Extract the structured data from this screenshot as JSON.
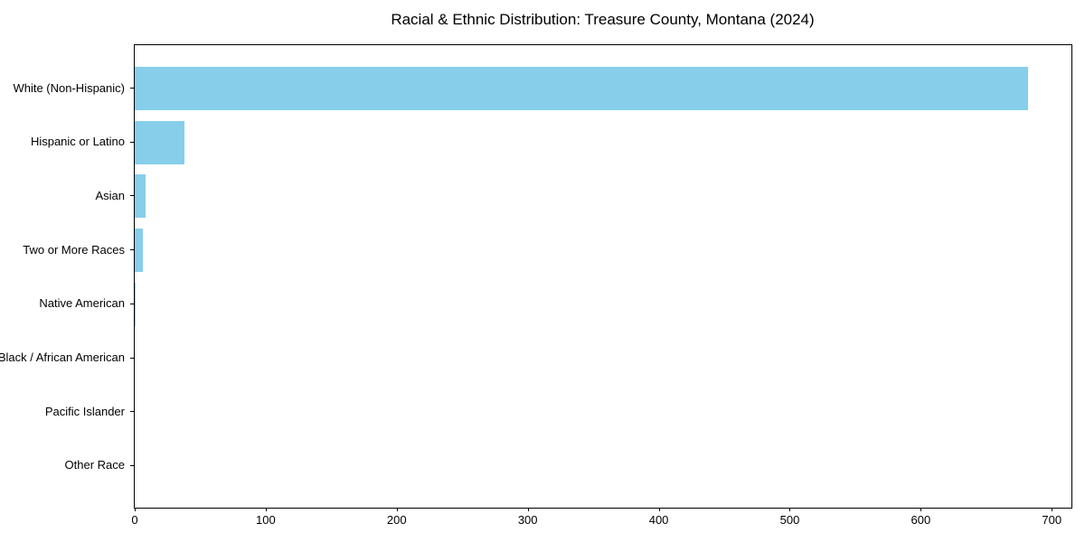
{
  "figure": {
    "background_color": "#ffffff",
    "text_color": "#000000",
    "spine_color": "#000000"
  },
  "chart_data": {
    "type": "bar",
    "orientation": "horizontal",
    "title": "Racial & Ethnic Distribution: Treasure County, Montana (2024)",
    "categories": [
      "White (Non-Hispanic)",
      "Hispanic or Latino",
      "Asian",
      "Two or More Races",
      "Native American",
      "Black / African American",
      "Pacific Islander",
      "Other Race"
    ],
    "values": [
      682,
      38,
      8,
      6,
      1,
      0,
      0,
      0
    ],
    "bar_color": "#87CEEB",
    "xlabel": "",
    "ylabel": "",
    "x_ticks": [
      0,
      100,
      200,
      300,
      400,
      500,
      600,
      700
    ],
    "x_tick_labels": [
      "0",
      "100",
      "200",
      "300",
      "400",
      "500",
      "600",
      "700"
    ],
    "xlim": [
      0,
      715
    ],
    "grid": false,
    "legend": null
  }
}
